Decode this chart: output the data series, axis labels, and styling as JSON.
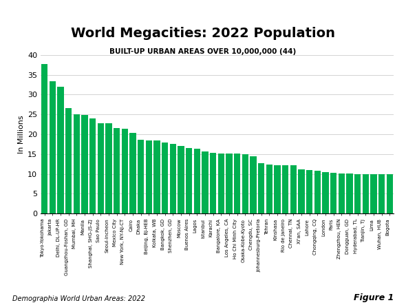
{
  "title": "World Megacities: 2022 Population",
  "subtitle": "BUILT-UP URBAN AREAS OVER 10,000,000 (44)",
  "ylabel": "In Millions",
  "source": "Demographia World Urban Areas: 2022",
  "figure_label": "Figure 1",
  "bar_color": "#00b050",
  "ylim": [
    0,
    40
  ],
  "yticks": [
    0,
    5,
    10,
    15,
    20,
    25,
    30,
    35,
    40
  ],
  "cities": [
    "Tokyo-Yokohama",
    "Jakarta",
    "Delhi, DL-UP-HR",
    "Guangzhou-Foshan, GD",
    "Mumbai, MH",
    "Manila",
    "Shanghai, SHG-JS-ZJ",
    "Sao Paulo",
    "Seoul-Incheon",
    "Mexico City",
    "New York, NY-NJ-CT",
    "Cairo",
    "Dhaka",
    "Beijing, BJ-HEB",
    "Kolkata, WB",
    "Bangkok, GD",
    "Shenzhen, GD",
    "Moscow",
    "Buenos Aires",
    "Lagos",
    "Istanbul",
    "Karachi",
    "Bangalore, KA",
    "Los Angeles, CA",
    "Ho Chi Minh City",
    "Osaka-Kobe-Kyoto",
    "Chengdu, SC",
    "Johannesburg-Pretoria",
    "Tehran",
    "Kinshasa",
    "Rio de Janeiro",
    "Chennai, TN",
    "Xi'an, SAA",
    "Lahore",
    "Chongqing, CQ",
    "London",
    "Paris",
    "Zhengzhou, HEN",
    "Dongguan, GD",
    "Hyderabad, TL",
    "Tianjin, TJ",
    "Lima",
    "Wuhan, HUB",
    "Bogota"
  ],
  "values": [
    37.7,
    33.4,
    31.9,
    26.6,
    25.0,
    24.9,
    23.9,
    22.8,
    22.8,
    21.6,
    21.4,
    20.3,
    18.6,
    18.5,
    18.5,
    17.9,
    17.5,
    17.0,
    16.5,
    16.4,
    15.6,
    15.3,
    15.2,
    15.1,
    15.1,
    14.9,
    14.4,
    12.7,
    12.4,
    12.2,
    12.2,
    12.1,
    11.1,
    11.0,
    10.7,
    10.5,
    10.2,
    10.1,
    10.1,
    10.0,
    10.0,
    10.0,
    10.0,
    10.0
  ]
}
